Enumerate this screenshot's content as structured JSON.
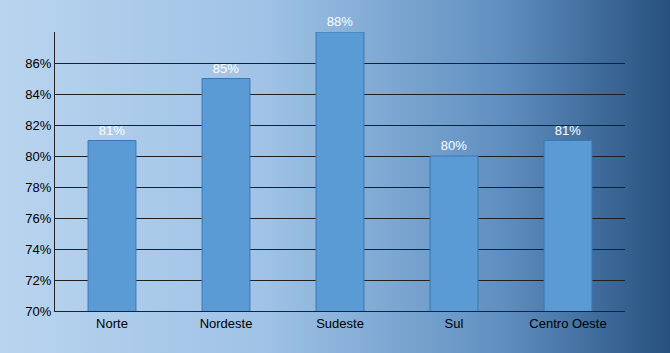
{
  "chart_data": {
    "type": "bar",
    "categories": [
      "Norte",
      "Nordeste",
      "Sudeste",
      "Sul",
      "Centro Oeste"
    ],
    "values": [
      81,
      85,
      88,
      80,
      81
    ],
    "value_labels": [
      "81%",
      "85%",
      "88%",
      "80%",
      "81%"
    ],
    "color": "#5b9bd5",
    "data_labels": true,
    "grid": true,
    "ylim": [
      70,
      88
    ],
    "yticks": [
      {
        "value": 70,
        "label": "70%"
      },
      {
        "value": 72,
        "label": "72%"
      },
      {
        "value": 74,
        "label": "74%"
      },
      {
        "value": 76,
        "label": "76%"
      },
      {
        "value": 78,
        "label": "78%"
      },
      {
        "value": 80,
        "label": "80%"
      },
      {
        "value": 82,
        "label": "82%"
      },
      {
        "value": 84,
        "label": "84%"
      },
      {
        "value": 86,
        "label": "86%"
      }
    ]
  }
}
